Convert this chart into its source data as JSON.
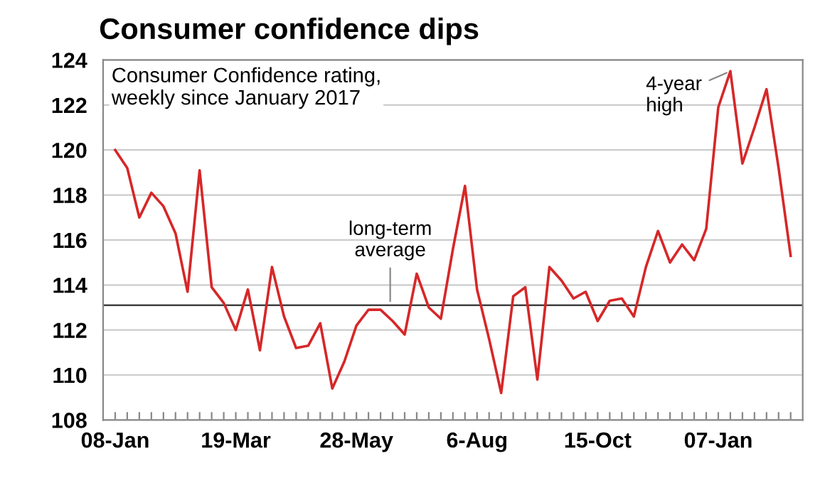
{
  "chart_data": {
    "type": "line",
    "title": "Consumer confidence dips",
    "subtitle": "Consumer Confidence rating,\nweekly since January 2017",
    "categories": [
      "08-Jan",
      null,
      null,
      null,
      null,
      null,
      null,
      null,
      null,
      null,
      "19-Mar",
      null,
      null,
      null,
      null,
      null,
      null,
      null,
      null,
      null,
      "28-May",
      null,
      null,
      null,
      null,
      null,
      null,
      null,
      null,
      null,
      "6-Aug",
      null,
      null,
      null,
      null,
      null,
      null,
      null,
      null,
      null,
      "15-Oct",
      null,
      null,
      null,
      null,
      null,
      null,
      null,
      null,
      null,
      "07-Jan",
      null,
      null,
      null,
      null,
      null,
      null
    ],
    "series": [
      {
        "color": "#d62728",
        "values": [
          120.0,
          119.2,
          117.0,
          118.1,
          117.5,
          116.3,
          113.7,
          119.1,
          113.9,
          113.2,
          112.0,
          113.8,
          111.1,
          114.8,
          112.6,
          111.2,
          111.3,
          112.3,
          109.4,
          110.6,
          112.2,
          112.9,
          112.9,
          112.4,
          111.8,
          114.5,
          113.0,
          112.5,
          115.6,
          118.4,
          113.8,
          111.6,
          109.2,
          113.5,
          113.9,
          109.8,
          114.8,
          114.2,
          113.4,
          113.7,
          112.4,
          113.3,
          113.4,
          112.6,
          114.8,
          116.4,
          115.0,
          115.8,
          115.1,
          116.5,
          121.9,
          123.5,
          119.4,
          121.0,
          122.7,
          119.2,
          115.3
        ]
      }
    ],
    "ylim": [
      108,
      124
    ],
    "yticks": [
      108,
      110,
      112,
      114,
      116,
      118,
      120,
      122,
      124
    ],
    "grid": "y",
    "ref_lines": [
      {
        "axis": "y",
        "value": 113.1,
        "label": "long-term\naverage",
        "color": "#404040"
      }
    ],
    "annotations": [
      "4-year\nhigh"
    ]
  }
}
